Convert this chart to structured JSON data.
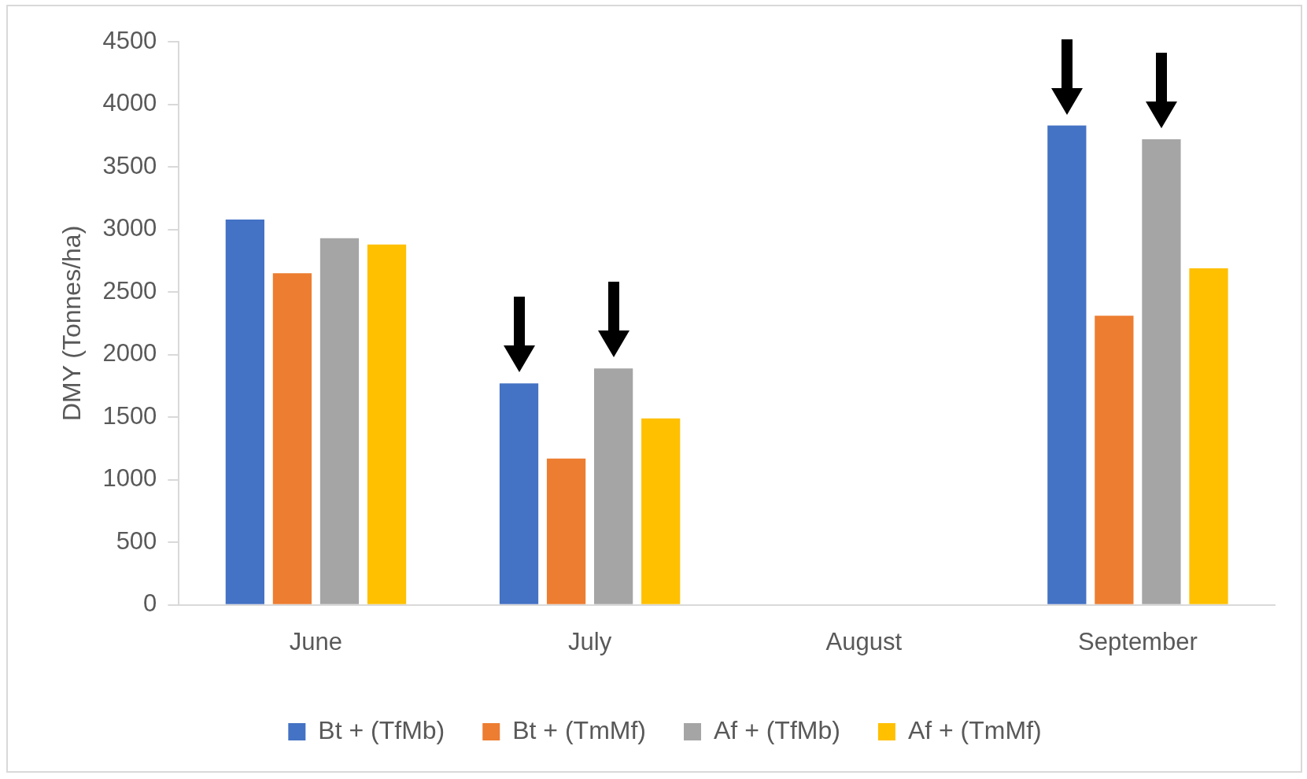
{
  "chart_data": {
    "type": "bar",
    "ylabel": "DMY (Tonnes/ha)",
    "categories": [
      "June",
      "July",
      "August",
      "September"
    ],
    "series": [
      {
        "name": "Bt + (TfMb)",
        "color": "#4472c4",
        "values": [
          3080,
          1770,
          null,
          3830
        ]
      },
      {
        "name": "Bt + (TmMf)",
        "color": "#ed7d31",
        "values": [
          2650,
          1170,
          null,
          2310
        ]
      },
      {
        "name": "Af + (TfMb)",
        "color": "#a5a5a5",
        "values": [
          2930,
          1890,
          null,
          3720
        ]
      },
      {
        "name": "Af + (TmMf)",
        "color": "#ffc000",
        "values": [
          2880,
          1490,
          null,
          2690
        ]
      }
    ],
    "ylim": [
      0,
      4500
    ],
    "yticks": [
      0,
      500,
      1000,
      1500,
      2000,
      2500,
      3000,
      3500,
      4000,
      4500
    ],
    "grid": false,
    "legend": "bottom"
  }
}
